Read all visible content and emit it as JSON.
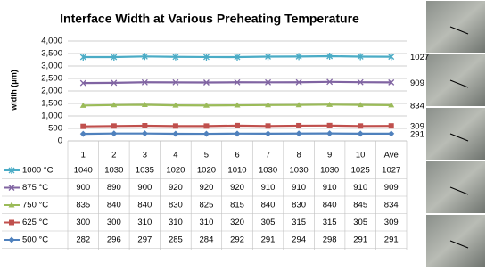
{
  "chart_data": {
    "type": "line",
    "stacked": true,
    "title": "Interface Width at Various Preheating Temperature",
    "y_label": "width (μm)",
    "categories": [
      "1",
      "2",
      "3",
      "4",
      "5",
      "6",
      "7",
      "8",
      "9",
      "10",
      "Ave"
    ],
    "ylim": [
      0,
      4000
    ],
    "yticks": [
      0,
      500,
      {
        "value": 1000,
        "label": "1,000"
      },
      {
        "value": 1500,
        "label": "1,500"
      },
      {
        "value": 2000,
        "label": "2,000"
      },
      {
        "value": 2500,
        "label": "2,500"
      },
      {
        "value": 3000,
        "label": "3,000"
      },
      {
        "value": 3500,
        "label": "3,500"
      },
      {
        "value": 4000,
        "label": "4,000"
      }
    ],
    "grid": true,
    "series": [
      {
        "name": "1000 °C",
        "color": "#4bacc6",
        "marker": "star",
        "values": [
          1040,
          1030,
          1035,
          1020,
          1020,
          1010,
          1030,
          1030,
          1030,
          1025,
          1027
        ]
      },
      {
        "name": "875 °C",
        "color": "#8064a2",
        "marker": "x",
        "values": [
          900,
          890,
          900,
          920,
          920,
          920,
          910,
          910,
          910,
          910,
          909
        ]
      },
      {
        "name": "750 °C",
        "color": "#9bbb59",
        "marker": "triangle",
        "values": [
          835,
          840,
          840,
          830,
          825,
          815,
          840,
          830,
          840,
          845,
          834
        ]
      },
      {
        "name": "625 °C",
        "color": "#c0504d",
        "marker": "square",
        "values": [
          300,
          300,
          310,
          310,
          310,
          320,
          305,
          315,
          315,
          305,
          309
        ]
      },
      {
        "name": "500 °C",
        "color": "#4f81bd",
        "marker": "diamond",
        "values": [
          282,
          296,
          297,
          285,
          284,
          292,
          291,
          294,
          298,
          291,
          291
        ]
      }
    ]
  }
}
